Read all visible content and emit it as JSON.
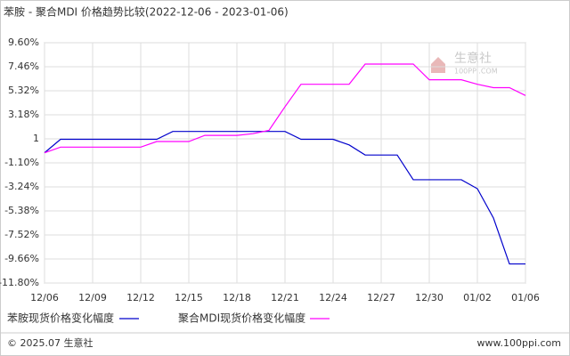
{
  "chart_data": {
    "type": "line",
    "title": "苯胺 - 聚合MDI 价格趋势比较(2022-12-06 - 2023-01-06)",
    "categories": [
      "12/06",
      null,
      null,
      "12/09",
      null,
      null,
      "12/12",
      null,
      null,
      "12/15",
      null,
      null,
      "12/18",
      null,
      null,
      "12/21",
      null,
      null,
      "12/24",
      null,
      null,
      "12/27",
      null,
      null,
      "12/30",
      null,
      null,
      "01/02",
      null,
      null,
      "01/06"
    ],
    "series": [
      {
        "name": "苯胺现货价格变化幅度",
        "color": "#0000cc",
        "values": [
          -0.2,
          1.0,
          1.0,
          1.0,
          1.0,
          1.0,
          1.0,
          1.0,
          1.7,
          1.7,
          1.7,
          1.7,
          1.7,
          1.7,
          1.7,
          1.7,
          1.0,
          1.0,
          1.0,
          0.5,
          -0.4,
          -0.4,
          -0.4,
          -2.6,
          -2.6,
          -2.6,
          -2.6,
          -3.4,
          -6.0,
          -10.1,
          -10.1
        ]
      },
      {
        "name": "聚合MDI现货价格变化幅度",
        "color": "#ff00ff",
        "values": [
          -0.2,
          0.3,
          0.3,
          0.3,
          0.3,
          0.3,
          0.3,
          0.8,
          0.8,
          0.8,
          1.35,
          1.35,
          1.35,
          1.5,
          1.8,
          3.9,
          5.9,
          5.9,
          5.9,
          5.9,
          7.7,
          7.7,
          7.7,
          7.7,
          6.3,
          6.3,
          6.3,
          5.9,
          5.6,
          5.6,
          4.9
        ]
      }
    ],
    "ylim": [
      -11.8,
      9.6
    ],
    "yticks": [
      {
        "value": 9.6,
        "label": "9.60%"
      },
      {
        "value": 7.46,
        "label": "7.46%"
      },
      {
        "value": 5.32,
        "label": "5.32%"
      },
      {
        "value": 3.18,
        "label": "3.18%"
      },
      {
        "value": 1.04,
        "label": "1"
      },
      {
        "value": -1.1,
        "label": "-1.10%"
      },
      {
        "value": -3.24,
        "label": "-3.24%"
      },
      {
        "value": -5.38,
        "label": "-5.38%"
      },
      {
        "value": -7.52,
        "label": "-7.52%"
      },
      {
        "value": -9.66,
        "label": "-9.66%"
      },
      {
        "value": -11.8,
        "label": "-11.80%"
      }
    ],
    "grid": true,
    "watermark": {
      "name": "生意社",
      "site": "100PPI.COM"
    },
    "footer": {
      "copyright": "© 2025.07 生意社",
      "url": "www.100ppi.com"
    }
  }
}
